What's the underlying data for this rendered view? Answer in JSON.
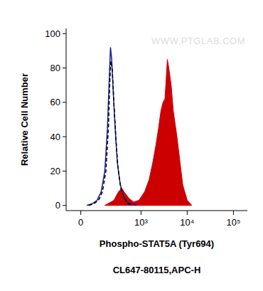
{
  "chart_data": {
    "type": "histogram",
    "xlabel": "Phospho-STAT5A (Tyr694)",
    "subtitle": "CL647-80115,APC-H",
    "ylabel": "Relative Cell Number",
    "annotations": [
      {
        "text": "WWW.PTGLAB.COM"
      }
    ],
    "log": "x",
    "xlim": [
      -80,
      200000
    ],
    "xticks": [
      0,
      {
        "value": 1000,
        "label": "10³"
      },
      {
        "value": 10000,
        "label": "10⁴"
      },
      {
        "value": 100000,
        "label": "10⁵"
      }
    ],
    "ylim": [
      -3,
      103
    ],
    "yticks": [
      0,
      20,
      40,
      60,
      80,
      100
    ],
    "series": [
      {
        "type": "line",
        "color": "#1c1c9c",
        "line_style": "solid",
        "x": [
          30,
          60,
          90,
          120,
          150,
          175,
          195,
          208,
          222,
          248,
          275,
          300,
          350,
          420,
          500,
          600,
          800
        ],
        "values": [
          0,
          1,
          3,
          8,
          20,
          45,
          75,
          92,
          85,
          60,
          40,
          25,
          12,
          5,
          2,
          1,
          0
        ]
      },
      {
        "type": "line",
        "color": "#000000",
        "line_style": "dashed",
        "x": [
          40,
          70,
          100,
          130,
          160,
          185,
          200,
          212,
          228,
          252,
          280,
          310,
          360,
          430,
          520,
          650
        ],
        "values": [
          0,
          1,
          3,
          8,
          20,
          45,
          72,
          84,
          80,
          58,
          38,
          22,
          10,
          4,
          1,
          0
        ]
      },
      {
        "type": "area",
        "color": "#cc0000",
        "line_style": "solid",
        "x": [
          150,
          250,
          320,
          378,
          450,
          550,
          690,
          900,
          1200,
          1500,
          1800,
          2100,
          2400,
          2700,
          3000,
          3300,
          3720,
          4000,
          4500,
          5000,
          6000,
          7000,
          8000,
          10000,
          12600
        ],
        "values": [
          0,
          3,
          8,
          10,
          7,
          4,
          2,
          3,
          8,
          15,
          25,
          35,
          45,
          55,
          60,
          62,
          85,
          80,
          70,
          55,
          40,
          25,
          12,
          3,
          0
        ]
      }
    ]
  }
}
